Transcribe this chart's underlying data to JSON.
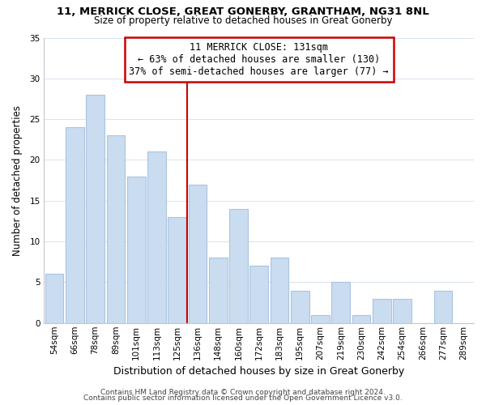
{
  "title1": "11, MERRICK CLOSE, GREAT GONERBY, GRANTHAM, NG31 8NL",
  "title2": "Size of property relative to detached houses in Great Gonerby",
  "xlabel": "Distribution of detached houses by size in Great Gonerby",
  "ylabel": "Number of detached properties",
  "bar_labels": [
    "54sqm",
    "66sqm",
    "78sqm",
    "89sqm",
    "101sqm",
    "113sqm",
    "125sqm",
    "136sqm",
    "148sqm",
    "160sqm",
    "172sqm",
    "183sqm",
    "195sqm",
    "207sqm",
    "219sqm",
    "230sqm",
    "242sqm",
    "254sqm",
    "266sqm",
    "277sqm",
    "289sqm"
  ],
  "bar_values": [
    6,
    24,
    28,
    23,
    18,
    21,
    13,
    17,
    8,
    14,
    7,
    8,
    4,
    1,
    5,
    1,
    3,
    3,
    0,
    4,
    0
  ],
  "bar_color": "#c9dcf0",
  "bar_edge_color": "#aac4e0",
  "vline_index": 6.5,
  "annotation_line1": "11 MERRICK CLOSE: 131sqm",
  "annotation_line2": "← 63% of detached houses are smaller (130)",
  "annotation_line3": "37% of semi-detached houses are larger (77) →",
  "annotation_box_color": "#ffffff",
  "annotation_box_edge": "#cc0000",
  "vline_color": "#cc0000",
  "footer1": "Contains HM Land Registry data © Crown copyright and database right 2024.",
  "footer2": "Contains public sector information licensed under the Open Government Licence v3.0.",
  "ylim": [
    0,
    35
  ],
  "yticks": [
    0,
    5,
    10,
    15,
    20,
    25,
    30,
    35
  ],
  "grid_color": "#d8e4f0",
  "spine_color": "#c0c8d0",
  "title1_fontsize": 9.5,
  "title2_fontsize": 8.5,
  "ylabel_fontsize": 8.5,
  "xlabel_fontsize": 9,
  "tick_fontsize": 7.5,
  "annotation_fontsize": 8.5,
  "footer_fontsize": 6.5
}
